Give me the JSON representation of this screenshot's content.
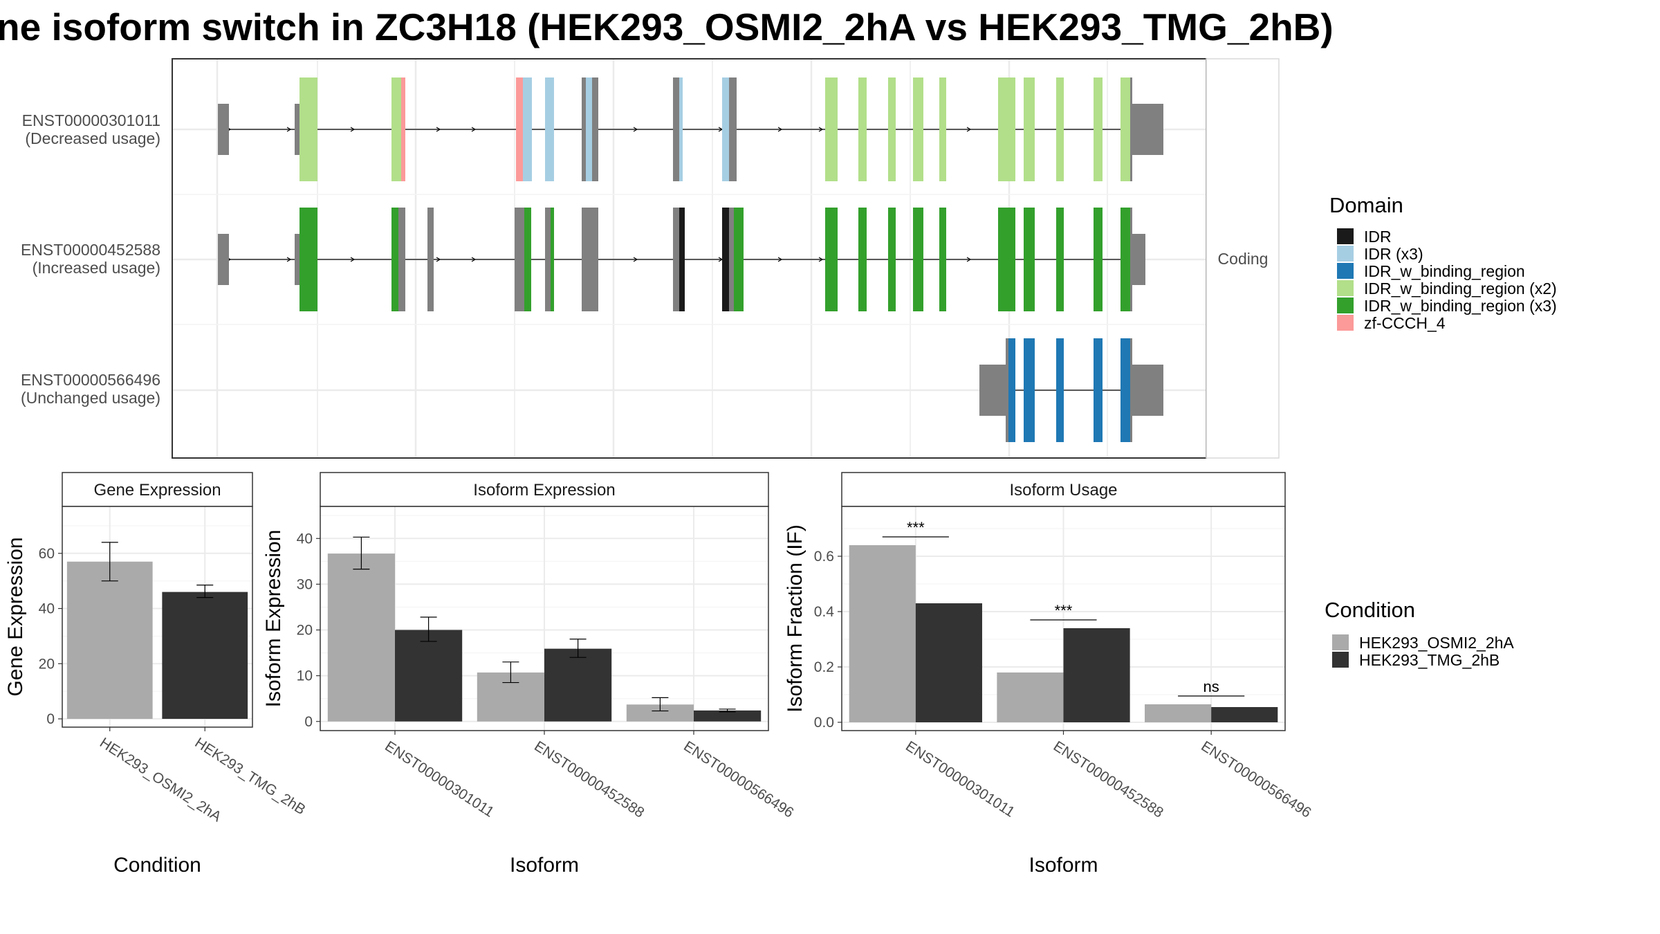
{
  "title": "ne isoform switch in ZC3H18 (HEK293_OSMI2_2hA vs HEK293_TMG_2hB)",
  "colors": {
    "IDR": "#1a1a1a",
    "IDR (x3)": "#a6cee3",
    "IDR_w_binding_region": "#1f78b4",
    "IDR_w_binding_region (x2)": "#b2df8a",
    "IDR_w_binding_region (x3)": "#33a02c",
    "zf-CCCH_4": "#fb9a99",
    "noncoding": "#808080",
    "cond_a": "#aaaaaa",
    "cond_b": "#333333"
  },
  "transcripts": [
    {
      "id": "ENST00000301011",
      "usage": "(Decreased usage)"
    },
    {
      "id": "ENST00000452588",
      "usage": "(Increased usage)"
    },
    {
      "id": "ENST00000566496",
      "usage": "(Unchanged usage)"
    }
  ],
  "facet_label": "Coding",
  "domain_legend": {
    "title": "Domain",
    "items": [
      "IDR",
      "IDR (x3)",
      "IDR_w_binding_region",
      "IDR_w_binding_region (x2)",
      "IDR_w_binding_region (x3)",
      "zf-CCCH_4"
    ]
  },
  "condition_legend": {
    "title": "Condition",
    "items": [
      "HEK293_OSMI2_2hA",
      "HEK293_TMG_2hB"
    ]
  },
  "chart_data": [
    {
      "type": "bar",
      "strip": "Gene Expression",
      "xlabel": "Condition",
      "ylabel": "Gene Expression",
      "categories": [
        "HEK293_OSMI2_2hA",
        "HEK293_TMG_2hB"
      ],
      "values": [
        57,
        46
      ],
      "err_low": [
        50,
        44
      ],
      "err_high": [
        64,
        48.5
      ],
      "ylim": [
        -3,
        77
      ],
      "yticks": [
        "0",
        "20",
        "40",
        "60"
      ]
    },
    {
      "type": "bar",
      "strip": "Isoform Expression",
      "xlabel": "Isoform",
      "ylabel": "Isoform Expression",
      "categories": [
        "ENST00000301011",
        "ENST00000452588",
        "ENST00000566496"
      ],
      "series": [
        {
          "name": "HEK293_OSMI2_2hA",
          "values": [
            36.7,
            10.7,
            3.7
          ],
          "err_low": [
            33.3,
            8.5,
            2.3
          ],
          "err_high": [
            40.3,
            13.0,
            5.2
          ]
        },
        {
          "name": "HEK293_TMG_2hB",
          "values": [
            20.0,
            15.9,
            2.4
          ],
          "err_low": [
            17.5,
            14.0,
            2.1
          ],
          "err_high": [
            22.8,
            18.0,
            2.7
          ]
        }
      ],
      "ylim": [
        -2,
        47
      ],
      "yticks": [
        "0",
        "10",
        "20",
        "30",
        "40"
      ]
    },
    {
      "type": "bar",
      "strip": "Isoform Usage",
      "xlabel": "Isoform",
      "ylabel": "Isoform Fraction (IF)",
      "categories": [
        "ENST00000301011",
        "ENST00000452588",
        "ENST00000566496"
      ],
      "series": [
        {
          "name": "HEK293_OSMI2_2hA",
          "values": [
            0.64,
            0.18,
            0.065
          ]
        },
        {
          "name": "HEK293_TMG_2hB",
          "values": [
            0.43,
            0.34,
            0.055
          ]
        }
      ],
      "significance": [
        "***",
        "***",
        "ns"
      ],
      "ylim": [
        -0.03,
        0.78
      ],
      "yticks": [
        "0.0",
        "0.2",
        "0.4",
        "0.6"
      ]
    }
  ]
}
